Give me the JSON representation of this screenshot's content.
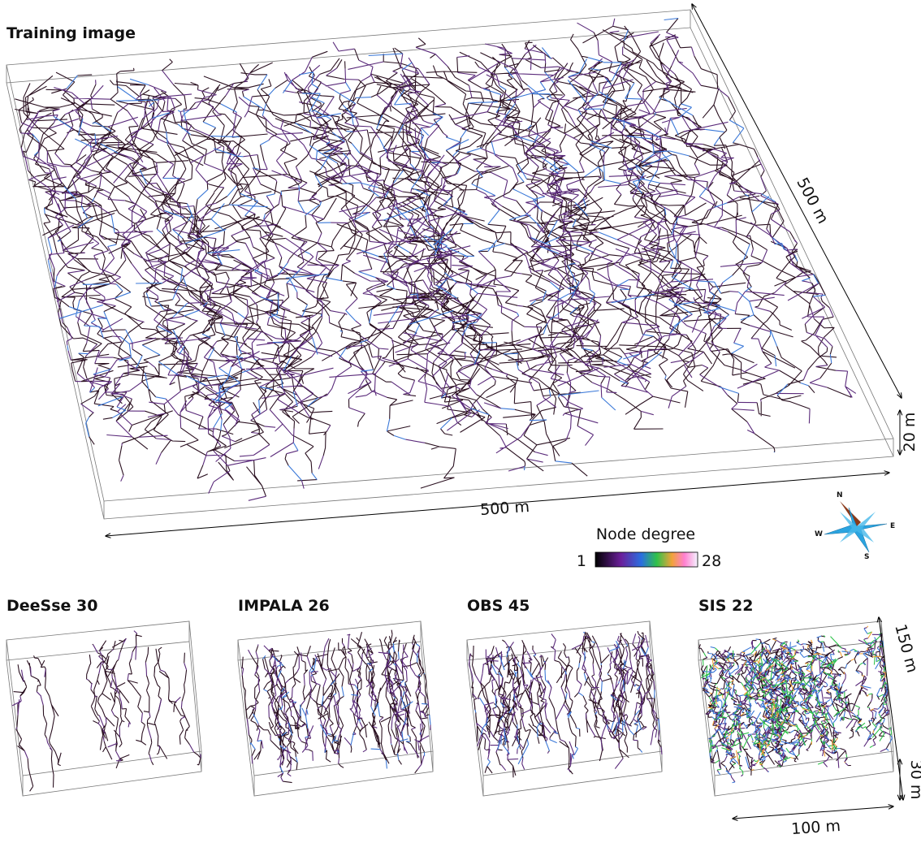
{
  "main": {
    "title": "Training image",
    "width_label": "500 m",
    "depth_label": "500 m",
    "height_label": "20 m"
  },
  "colorbar": {
    "label": "Node degree",
    "min": "1",
    "max": "28"
  },
  "compass": {
    "north": "N",
    "east": "E",
    "south": "S",
    "west": "W"
  },
  "panels": [
    {
      "title": "DeeSse 30"
    },
    {
      "title": "IMPALA 26"
    },
    {
      "title": "OBS 45"
    },
    {
      "title": "SIS 22"
    }
  ],
  "small_dims": {
    "depth_label": "150 m",
    "height_label": "30 m",
    "width_label": "100 m"
  }
}
